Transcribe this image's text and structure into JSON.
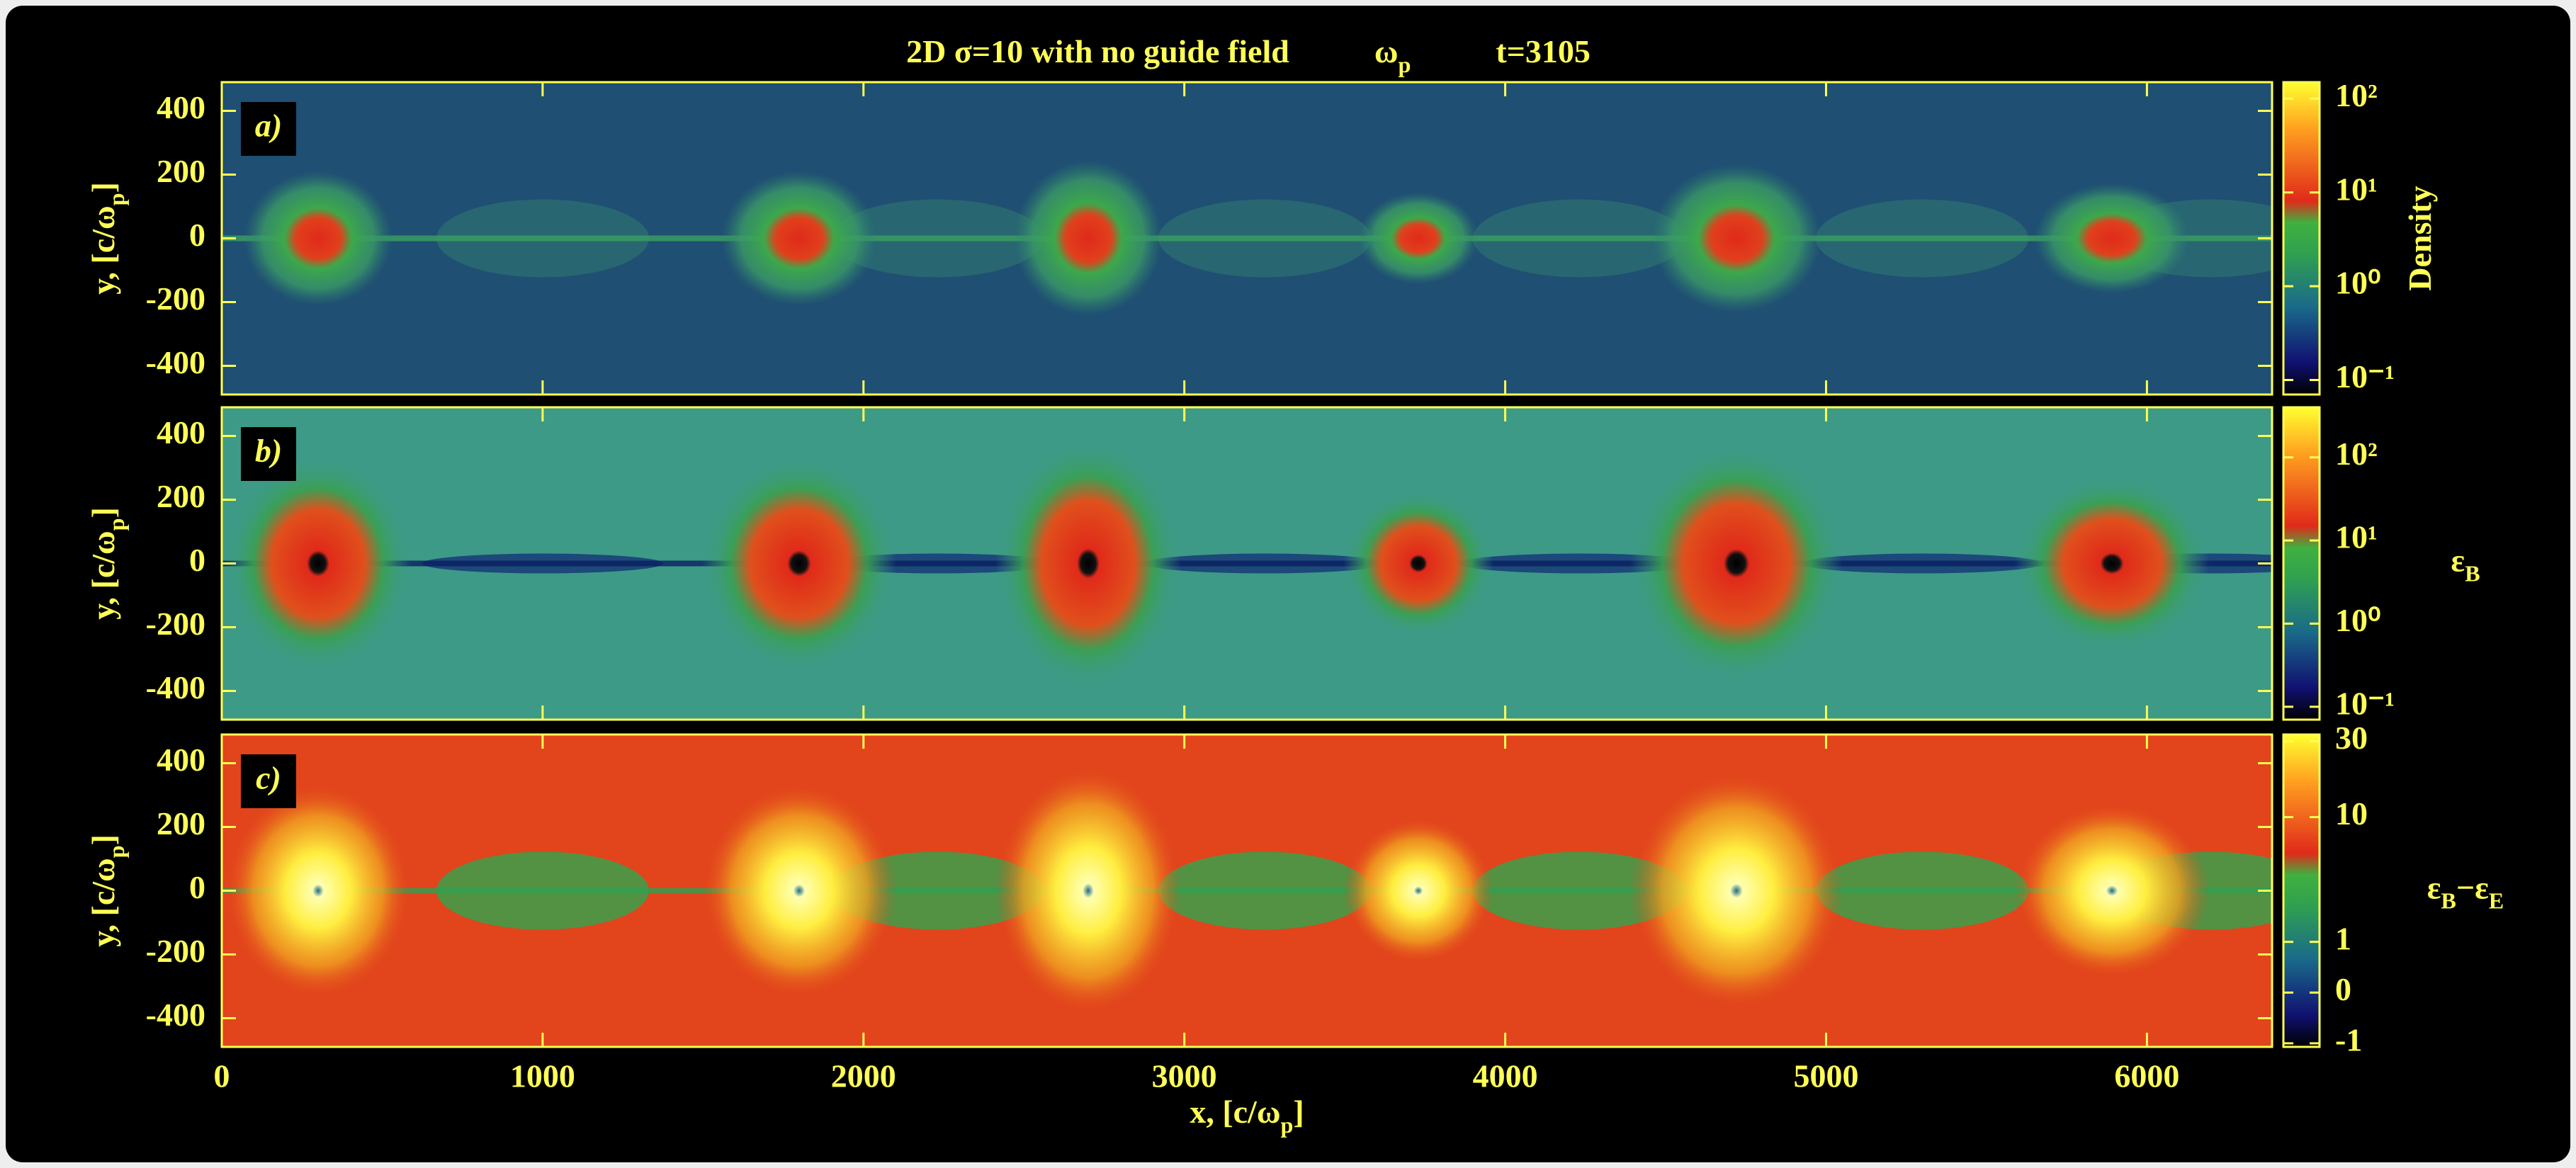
{
  "chart_data": [
    {
      "type": "heatmap",
      "panel_label": "a)",
      "title": [
        {
          "text": "2D σ=10 with no guide field"
        },
        {
          "text": "ω",
          "sub": "p"
        },
        {
          "text": "t=3105"
        }
      ],
      "ylabel": [
        {
          "text": "y, [c/ω",
          "sub": "p"
        },
        {
          "text": "]"
        }
      ],
      "xlim": [
        0,
        6390
      ],
      "ylim": [
        -490,
        490
      ],
      "xticks": [
        0,
        1000,
        2000,
        3000,
        4000,
        5000,
        6000
      ],
      "yticks": [
        -400,
        -200,
        0,
        200,
        400
      ],
      "colorbar": {
        "label": [
          {
            "text": "Density"
          }
        ],
        "scale": "log",
        "lim": [
          0.07,
          150
        ],
        "ticks": [
          {
            "value": 0.1,
            "label": "10⁻¹"
          },
          {
            "value": 1,
            "label": "10⁰"
          },
          {
            "value": 10,
            "label": "10¹"
          },
          {
            "value": 100,
            "label": "10²"
          }
        ]
      }
    },
    {
      "type": "heatmap",
      "panel_label": "b)",
      "ylabel": [
        {
          "text": "y, [c/ω",
          "sub": "p"
        },
        {
          "text": "]"
        }
      ],
      "xlim": [
        0,
        6390
      ],
      "ylim": [
        -490,
        490
      ],
      "xticks": [
        0,
        1000,
        2000,
        3000,
        4000,
        5000,
        6000
      ],
      "yticks": [
        -400,
        -200,
        0,
        200,
        400
      ],
      "colorbar": {
        "label": [
          {
            "text": "ε",
            "sub": "B"
          }
        ],
        "scale": "log",
        "lim": [
          0.07,
          400
        ],
        "ticks": [
          {
            "value": 0.1,
            "label": "10⁻¹"
          },
          {
            "value": 1,
            "label": "10⁰"
          },
          {
            "value": 10,
            "label": "10¹"
          },
          {
            "value": 100,
            "label": "10²"
          }
        ]
      }
    },
    {
      "type": "heatmap",
      "panel_label": "c)",
      "ylabel": [
        {
          "text": "y, [c/ω",
          "sub": "p"
        },
        {
          "text": "]"
        }
      ],
      "xlabel": [
        {
          "text": "x, [c/ω",
          "sub": "p"
        },
        {
          "text": "]"
        }
      ],
      "xlim": [
        0,
        6390
      ],
      "ylim": [
        -490,
        490
      ],
      "xticks": [
        0,
        1000,
        2000,
        3000,
        4000,
        5000,
        6000
      ],
      "yticks": [
        -400,
        -200,
        0,
        200,
        400
      ],
      "colorbar": {
        "label": [
          {
            "text": "ε",
            "sub": "B"
          },
          {
            "text": "−ε",
            "sub": "E"
          }
        ],
        "scale": "symlog",
        "lim": [
          -1.1,
          33
        ],
        "ticks": [
          -1,
          0,
          1,
          10,
          30
        ]
      }
    }
  ]
}
